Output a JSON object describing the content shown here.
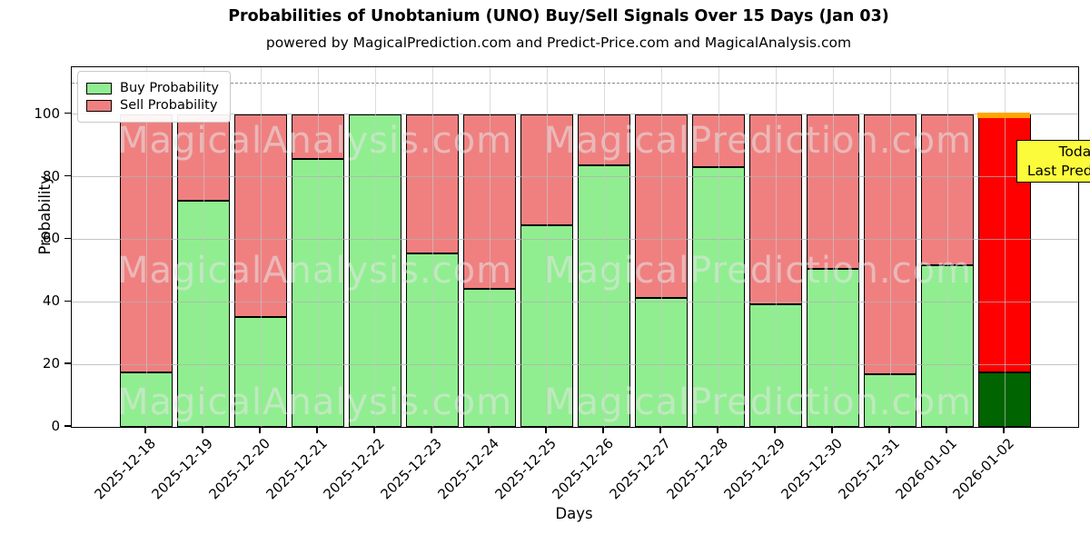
{
  "title": "Probabilities of Unobtanium (UNO) Buy/Sell Signals Over 15 Days (Jan 03)",
  "subtitle": "powered by MagicalPrediction.com and Predict-Price.com and MagicalAnalysis.com",
  "annotation_box": {
    "line1": "Today",
    "line2": "Last Prediction",
    "bg_color": "#ffff00"
  },
  "legend": [
    {
      "label": "Buy Probability",
      "color": "#90ee90"
    },
    {
      "label": "Sell Probability",
      "color": "#f08080"
    }
  ],
  "watermarks": [
    "MagicalAnalysis.com",
    "MagicalPrediction.com"
  ],
  "colors": {
    "buy": "#90ee90",
    "sell": "#f08080",
    "today_buy": "#006400",
    "today_sell": "#ff0000",
    "today_cap": "#ffa500",
    "bar_edge": "#000000"
  },
  "chart_data": {
    "type": "bar",
    "stacked": true,
    "title": "Probabilities of Unobtanium (UNO) Buy/Sell Signals Over 15 Days (Jan 03)",
    "xlabel": "Days",
    "ylabel": "Probability",
    "ylim": [
      0,
      115
    ],
    "yticks": [
      0,
      20,
      40,
      60,
      80,
      100
    ],
    "grid": true,
    "dashed_line_y": 110,
    "legend_position": "upper-left",
    "categories": [
      "2025-12-18",
      "2025-12-19",
      "2025-12-20",
      "2025-12-21",
      "2025-12-22",
      "2025-12-23",
      "2025-12-24",
      "2025-12-25",
      "2025-12-26",
      "2025-12-27",
      "2025-12-28",
      "2025-12-29",
      "2025-12-30",
      "2025-12-31",
      "2026-01-01",
      "2026-01-02"
    ],
    "series": [
      {
        "name": "Buy Probability",
        "values": [
          17.4,
          72.2,
          35.0,
          85.8,
          100.0,
          55.6,
          44.1,
          64.6,
          83.6,
          41.1,
          83.2,
          39.1,
          50.5,
          16.8,
          51.7,
          17.3
        ]
      },
      {
        "name": "Sell Probability",
        "values": [
          82.6,
          27.8,
          65.0,
          14.2,
          0.0,
          44.4,
          55.9,
          35.4,
          16.4,
          58.9,
          16.8,
          60.9,
          49.5,
          83.2,
          48.3,
          82.7
        ]
      }
    ],
    "today_index": 15
  }
}
